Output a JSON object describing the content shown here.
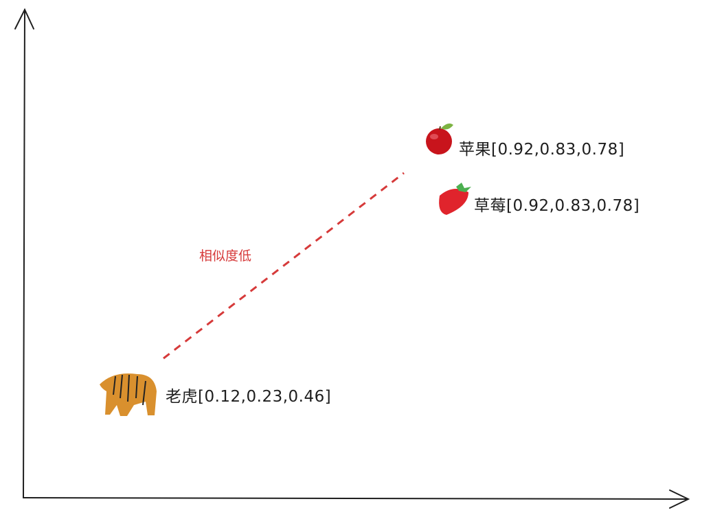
{
  "items": [
    {
      "name": "苹果",
      "vector": "[0.92,0.83,0.78]",
      "icon": "apple-icon"
    },
    {
      "name": "草莓",
      "vector": "[0.92,0.83,0.78]",
      "icon": "strawberry-icon"
    },
    {
      "name": "老虎",
      "vector": "[0.12,0.23,0.46]",
      "icon": "tiger-icon"
    }
  ],
  "annotation": {
    "text": "相似度低",
    "color": "#d63a3a"
  },
  "colors": {
    "axis": "#1e1e1e",
    "dashed_line": "#d63a3a"
  }
}
